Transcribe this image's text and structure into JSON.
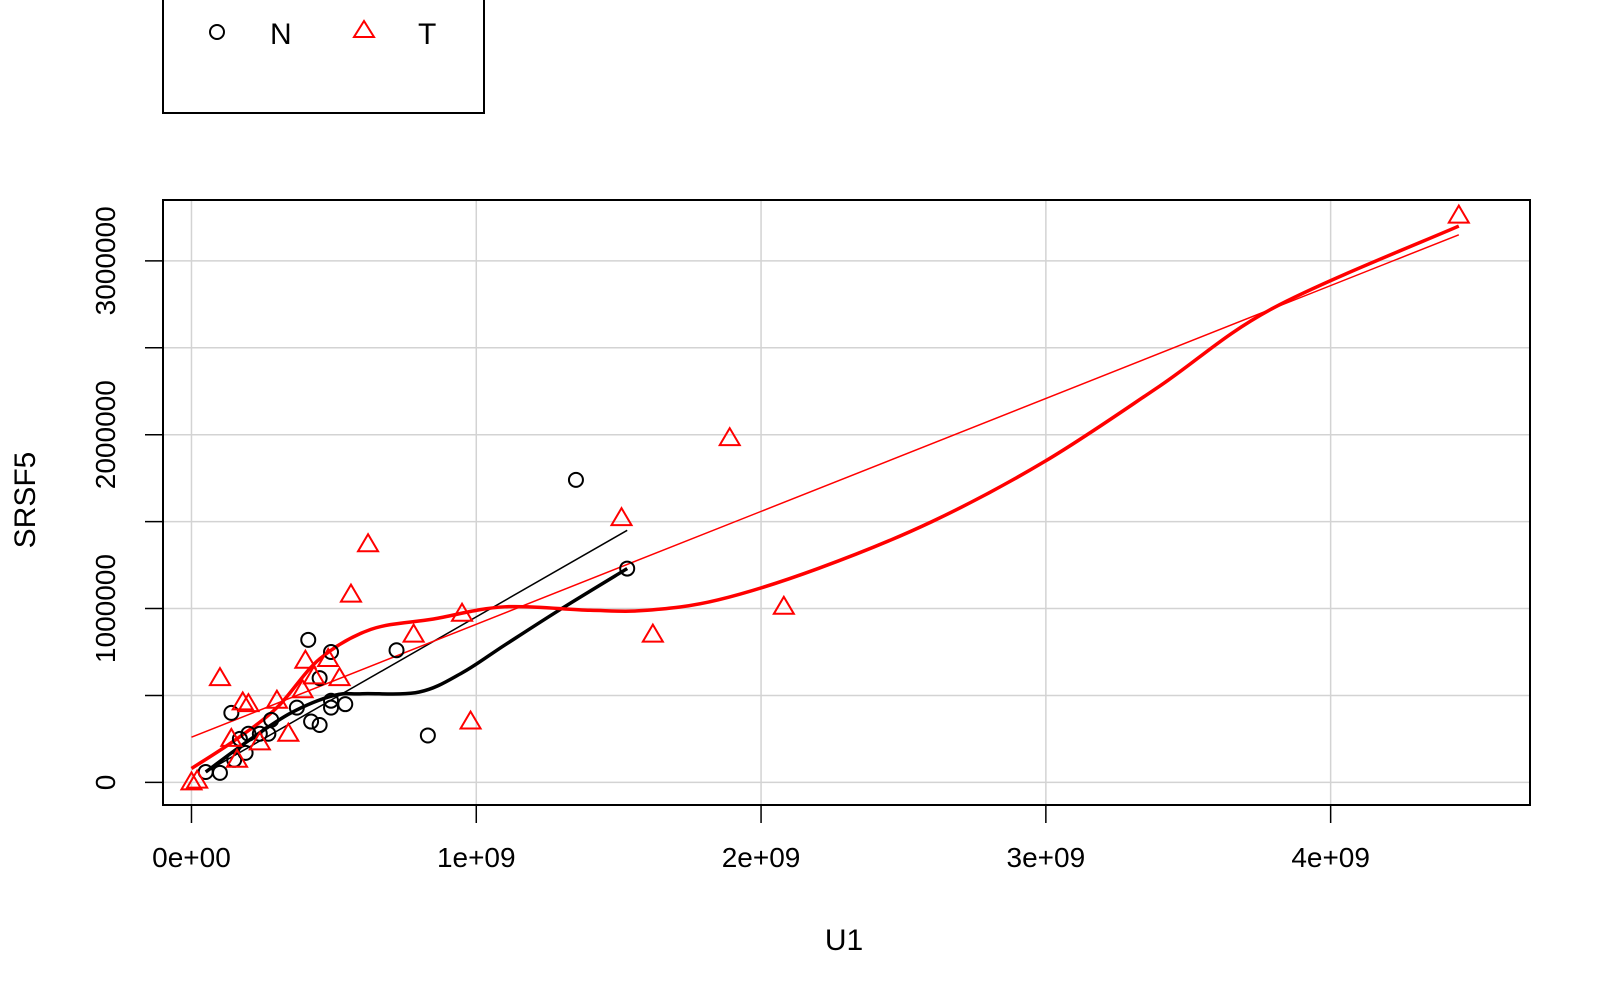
{
  "chart_data": {
    "type": "scatter",
    "title": "",
    "xlabel": "U1",
    "ylabel": "SRSF5",
    "xlim": [
      -100000000,
      4700000000
    ],
    "ylim": [
      -130000,
      3350000
    ],
    "x_ticks": [
      0,
      1000000000,
      2000000000,
      3000000000,
      4000000000
    ],
    "x_tick_labels": [
      "0e+00",
      "1e+09",
      "2e+09",
      "3e+09",
      "4e+09"
    ],
    "y_ticks": [
      0,
      1000000,
      2000000,
      3000000
    ],
    "y_tick_labels": [
      "0",
      "1000000",
      "2000000",
      "3000000"
    ],
    "y_grid": [
      0,
      500000,
      1000000,
      1500000,
      2000000,
      2500000,
      3000000
    ],
    "grid": true,
    "legend": {
      "placement": "top-left",
      "entries": [
        {
          "label": "N",
          "marker": "circle",
          "color": "#000000"
        },
        {
          "label": "T",
          "marker": "triangle",
          "color": "#ff0000"
        }
      ]
    },
    "series": [
      {
        "name": "N",
        "color": "#000000",
        "marker": "circle",
        "points": [
          [
            50000000,
            60000
          ],
          [
            100000000,
            55000
          ],
          [
            140000000,
            400000
          ],
          [
            150000000,
            130000
          ],
          [
            170000000,
            250000
          ],
          [
            190000000,
            170000
          ],
          [
            200000000,
            280000
          ],
          [
            240000000,
            280000
          ],
          [
            270000000,
            280000
          ],
          [
            280000000,
            360000
          ],
          [
            370000000,
            430000
          ],
          [
            410000000,
            820000
          ],
          [
            420000000,
            350000
          ],
          [
            450000000,
            600000
          ],
          [
            450000000,
            330000
          ],
          [
            490000000,
            750000
          ],
          [
            490000000,
            470000
          ],
          [
            490000000,
            430000
          ],
          [
            540000000,
            450000
          ],
          [
            720000000,
            760000
          ],
          [
            830000000,
            270000
          ],
          [
            1350000000,
            1740000
          ],
          [
            1530000000,
            1230000
          ]
        ],
        "fit_line": [
          [
            50000000,
            60000
          ],
          [
            1530000000,
            1450000
          ]
        ],
        "smooth": [
          [
            50000000,
            60000
          ],
          [
            200000000,
            240000
          ],
          [
            350000000,
            400000
          ],
          [
            500000000,
            500000
          ],
          [
            600000000,
            510000
          ],
          [
            800000000,
            520000
          ],
          [
            950000000,
            630000
          ],
          [
            1100000000,
            790000
          ],
          [
            1300000000,
            1000000
          ],
          [
            1530000000,
            1230000
          ]
        ]
      },
      {
        "name": "T",
        "color": "#ff0000",
        "marker": "triangle",
        "points": [
          [
            0,
            0
          ],
          [
            20000000,
            10000
          ],
          [
            100000000,
            600000
          ],
          [
            140000000,
            250000
          ],
          [
            160000000,
            130000
          ],
          [
            180000000,
            460000
          ],
          [
            200000000,
            450000
          ],
          [
            240000000,
            230000
          ],
          [
            300000000,
            470000
          ],
          [
            340000000,
            280000
          ],
          [
            390000000,
            530000
          ],
          [
            400000000,
            700000
          ],
          [
            430000000,
            610000
          ],
          [
            480000000,
            710000
          ],
          [
            520000000,
            600000
          ],
          [
            560000000,
            1080000
          ],
          [
            620000000,
            1370000
          ],
          [
            780000000,
            850000
          ],
          [
            950000000,
            970000
          ],
          [
            980000000,
            350000
          ],
          [
            1510000000,
            1520000
          ],
          [
            1620000000,
            850000
          ],
          [
            1890000000,
            1980000
          ],
          [
            2080000000,
            1010000
          ],
          [
            4450000000,
            3260000
          ]
        ],
        "fit_line": [
          [
            0,
            260000
          ],
          [
            4450000000,
            3150000
          ]
        ],
        "smooth": [
          [
            0,
            80000
          ],
          [
            150000000,
            240000
          ],
          [
            300000000,
            430000
          ],
          [
            450000000,
            710000
          ],
          [
            630000000,
            880000
          ],
          [
            850000000,
            940000
          ],
          [
            1100000000,
            1010000
          ],
          [
            1400000000,
            990000
          ],
          [
            1600000000,
            990000
          ],
          [
            1850000000,
            1050000
          ],
          [
            2200000000,
            1230000
          ],
          [
            2600000000,
            1500000
          ],
          [
            3000000000,
            1850000
          ],
          [
            3400000000,
            2280000
          ],
          [
            3800000000,
            2730000
          ],
          [
            4450000000,
            3200000
          ]
        ]
      }
    ]
  }
}
